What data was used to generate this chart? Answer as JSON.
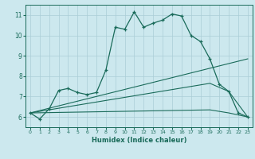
{
  "xlabel": "Humidex (Indice chaleur)",
  "bg_color": "#cce8ee",
  "line_color": "#1a6b5a",
  "grid_color": "#aacdd6",
  "xlim": [
    -0.5,
    23.5
  ],
  "ylim": [
    5.5,
    11.5
  ],
  "yticks": [
    6,
    7,
    8,
    9,
    10,
    11
  ],
  "xticks": [
    0,
    1,
    2,
    3,
    4,
    5,
    6,
    7,
    8,
    9,
    10,
    11,
    12,
    13,
    14,
    15,
    16,
    17,
    18,
    19,
    20,
    21,
    22,
    23
  ],
  "line1_x": [
    0,
    1,
    2,
    3,
    4,
    5,
    6,
    7,
    8,
    9,
    10,
    11,
    12,
    13,
    14,
    15,
    16,
    17,
    18,
    19,
    20,
    21,
    22,
    23
  ],
  "line1_y": [
    6.2,
    5.9,
    6.4,
    7.3,
    7.4,
    7.2,
    7.1,
    7.2,
    8.3,
    10.4,
    10.3,
    11.15,
    10.4,
    10.6,
    10.75,
    11.05,
    10.95,
    10.0,
    9.7,
    8.85,
    7.6,
    7.25,
    6.2,
    6.0
  ],
  "line2_x": [
    0,
    23
  ],
  "line2_y": [
    6.2,
    8.85
  ],
  "line3_x": [
    0,
    19,
    21,
    23
  ],
  "line3_y": [
    6.2,
    7.65,
    7.25,
    6.0
  ],
  "line4_x": [
    0,
    19,
    21,
    23
  ],
  "line4_y": [
    6.2,
    6.35,
    6.2,
    6.0
  ]
}
